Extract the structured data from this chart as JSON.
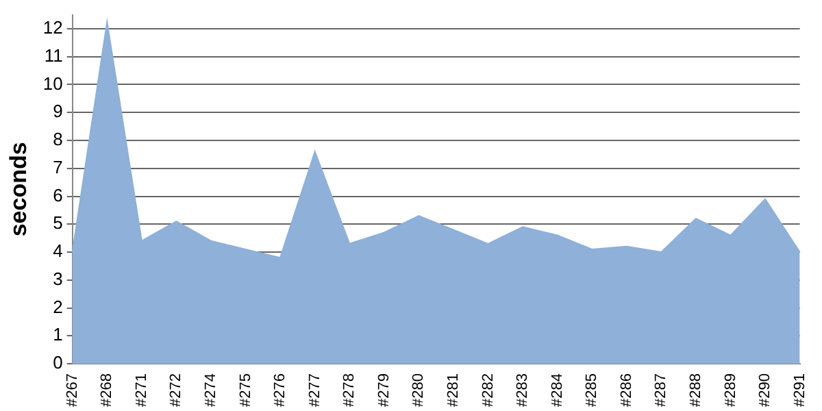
{
  "chart_data": {
    "type": "area",
    "ylabel": "seconds",
    "categories": [
      "#267",
      "#268",
      "#271",
      "#272",
      "#274",
      "#275",
      "#276",
      "#277",
      "#278",
      "#279",
      "#280",
      "#281",
      "#282",
      "#283",
      "#284",
      "#285",
      "#286",
      "#287",
      "#288",
      "#289",
      "#290",
      "#291"
    ],
    "series": [
      {
        "color": "#8eb0d9",
        "values": [
          4.0,
          12.25,
          4.4,
          5.1,
          4.4,
          4.1,
          3.8,
          7.6,
          4.3,
          4.7,
          5.3,
          4.8,
          4.3,
          4.9,
          4.6,
          4.1,
          4.2,
          4.0,
          5.2,
          4.6,
          5.9,
          4.0
        ]
      }
    ],
    "ylim": [
      0,
      12.5
    ],
    "yticks": [
      0,
      1,
      2,
      3,
      4,
      5,
      6,
      7,
      8,
      9,
      10,
      11,
      12
    ],
    "grid": "y",
    "legend": false
  }
}
